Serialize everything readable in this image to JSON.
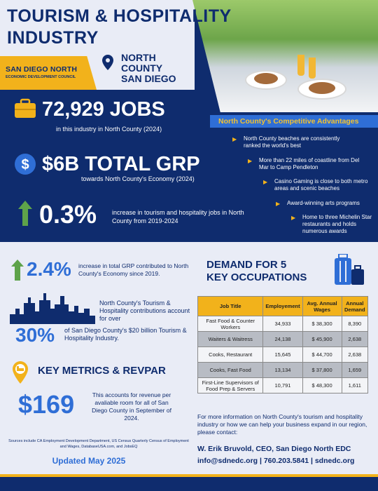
{
  "header": {
    "title_line1": "TOURISM & HOSPITALITY",
    "title_line2": "INDUSTRY",
    "logo_line1": "SAN DIEGO NORTH",
    "logo_line2": "ECONOMIC DEVELOPMENT COUNCIL",
    "location_line1": "NORTH",
    "location_line2": "COUNTY",
    "location_line3": "SAN DIEGO"
  },
  "stats": {
    "jobs_value": "72,929 JOBS",
    "jobs_caption": "in this industry in North County (2024)",
    "grp_value": "$6B TOTAL GRP",
    "grp_caption": "towards North County's Economy (2024)",
    "growth_value": "0.3%",
    "growth_caption": "increase in tourism and hospitality jobs in North County from 2019-2024"
  },
  "advantages": {
    "heading": "North County's Competitive Advantages",
    "items": [
      "North County beaches are consistently ranked the world's best",
      "More than 22 miles of coastline from Del Mar to Camp Pendleton",
      "Casino Gaming is close to both metro areas and scenic beaches",
      "Award-winning arts programs",
      "Home to three Michelin Star restaurants and holds numerous awards"
    ]
  },
  "lower_left": {
    "grp_growth_value": "2.4%",
    "grp_growth_caption": "increase in total GRP contributed to North County's Economy since 2019.",
    "contribution_text": "North County's Tourism & Hospitality contributions account for over",
    "share_value": "30%",
    "share_caption": "of San Diego County's $20 billion Tourism & Hospitality Industry.",
    "metrics_heading": "KEY METRICS & REVPAR",
    "revpar_value": "$169",
    "revpar_caption": "This accounts for revenue per avaliable room for all of San Diego County in September of 2024.",
    "sources": "Sources include CA Employment Development Department, US Census Quarterly Census of Employment and Wages, DatabaseUSA.com, and JobsEQ",
    "updated": "Updated May 2025"
  },
  "occupations": {
    "heading_line1": "DEMAND FOR 5",
    "heading_line2": "KEY OCCUPATIONS",
    "columns": [
      "Job Title",
      "Employement",
      "Avg. Annual Wages",
      "Annual Demand"
    ],
    "rows": [
      [
        "Fast Food & Counter Workers",
        "34,933",
        "$ 38,300",
        "8,390"
      ],
      [
        "Waiters & Waitress",
        "24,138",
        "$ 45,900",
        "2,638"
      ],
      [
        "Cooks, Restaurant",
        "15,645",
        "$ 44,700",
        "2,638"
      ],
      [
        "Cooks, Fast Food",
        "13,134",
        "$ 37,800",
        "1,659"
      ],
      [
        "First-Line Supervisors of Food Prep & Servers",
        "10,791",
        "$ 48,300",
        "1,611"
      ]
    ]
  },
  "contact": {
    "intro": "For more information on North County's tourism and hospitality industry or how we can help your business expand in our region, please contact:",
    "name": "W. Erik Bruvold, CEO, San Diego North EDC",
    "details": "info@sdnedc.org | 760.203.5841 | sdnedc.org"
  },
  "colors": {
    "navy": "#0f2c6e",
    "gold": "#f2b21b",
    "blue": "#2f6ed6",
    "green": "#5ea34a"
  }
}
